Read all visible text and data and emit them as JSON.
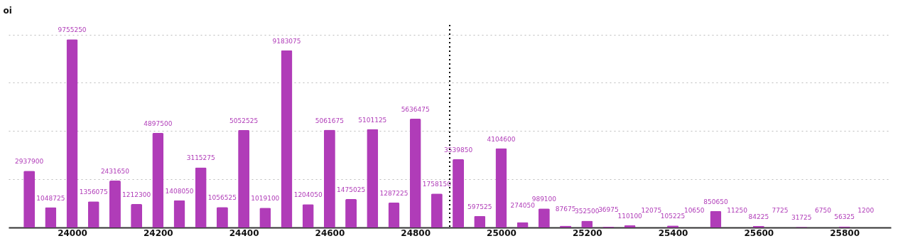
{
  "chart_data": {
    "type": "bar",
    "ylabel": "oi",
    "x": [
      23900,
      23950,
      24000,
      24050,
      24100,
      24150,
      24200,
      24250,
      24300,
      24350,
      24400,
      24450,
      24500,
      24550,
      24600,
      24650,
      24700,
      24750,
      24800,
      24850,
      24900,
      24950,
      25000,
      25050,
      25100,
      25150,
      25200,
      25250,
      25300,
      25350,
      25400,
      25450,
      25500,
      25550,
      25600,
      25650,
      25700,
      25750,
      25800,
      25850
    ],
    "values": [
      2937900,
      1048725,
      9755250,
      1356075,
      2431650,
      1212300,
      4897500,
      1408050,
      3115275,
      1056525,
      5052525,
      1019100,
      9183075,
      1204050,
      5061675,
      1475025,
      5101125,
      1287225,
      5636475,
      1758150,
      3539850,
      597525,
      4104600,
      274050,
      989100,
      87675,
      352500,
      36975,
      110100,
      12075,
      105225,
      10650,
      850650,
      11250,
      84225,
      7725,
      31725,
      6750,
      56325,
      1200
    ],
    "color": "#b03cb8",
    "xlim": [
      23860,
      25900
    ],
    "xticks": [
      24000,
      24200,
      24400,
      24600,
      24800,
      25000,
      25200,
      25400,
      25600,
      25800
    ],
    "ylim": [
      0,
      10500000
    ],
    "yticks": [
      {
        "value": 0,
        "label": null
      },
      {
        "value": 2500000,
        "label": null
      },
      {
        "value": 5000000,
        "label": null
      },
      {
        "value": 7500000,
        "label": null
      },
      {
        "value": 10000000,
        "label": null
      }
    ],
    "tick_labels": "x",
    "grid": "y",
    "data_labels": true,
    "ref_lines": [
      {
        "axis": "x",
        "value": 24880,
        "color": "#000000",
        "line_style": "dotted"
      }
    ]
  }
}
